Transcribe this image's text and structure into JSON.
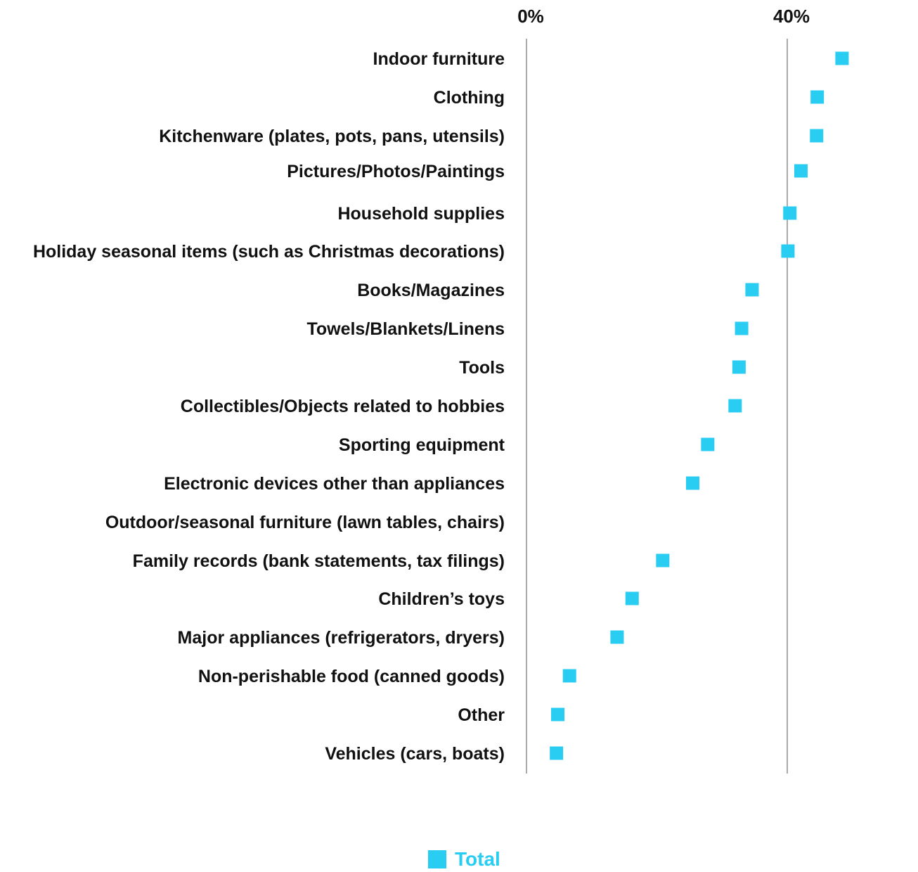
{
  "chart_data": {
    "type": "scatter",
    "orientation": "horizontal",
    "title": "",
    "xlabel": "",
    "ylabel": "",
    "xlim": [
      0,
      60
    ],
    "x_ticks": [
      0,
      40
    ],
    "x_tick_labels": [
      "0%",
      "40%"
    ],
    "grid": true,
    "legend_position": "bottom-center",
    "categories": [
      "Indoor furniture",
      "Clothing",
      "Kitchenware (plates, pots, pans, utensils)",
      "Pictures/Photos/Paintings",
      "Household supplies",
      "Holiday seasonal items (such as Christmas decorations)",
      "Books/Magazines",
      "Towels/Blankets/Linens",
      "Tools",
      "Collectibles/Objects related to hobbies",
      "Sporting equipment",
      "Electronic devices other than appliances",
      "Outdoor/seasonal furniture (lawn tables, chairs)",
      "Family records (bank statements, tax filings)",
      "Children’s toys",
      "Major appliances (refrigerators, dryers)",
      "Non-perishable food (canned goods)",
      "Other",
      "Vehicles (cars, boats)"
    ],
    "series": [
      {
        "name": "Total",
        "color": "#29CDF2",
        "values": [
          48.4,
          44.6,
          44.5,
          42.1,
          40.4,
          40.1,
          34.6,
          33.0,
          32.6,
          32.0,
          27.8,
          25.5,
          null,
          20.9,
          16.2,
          13.9,
          6.6,
          4.8,
          4.6
        ]
      }
    ]
  }
}
